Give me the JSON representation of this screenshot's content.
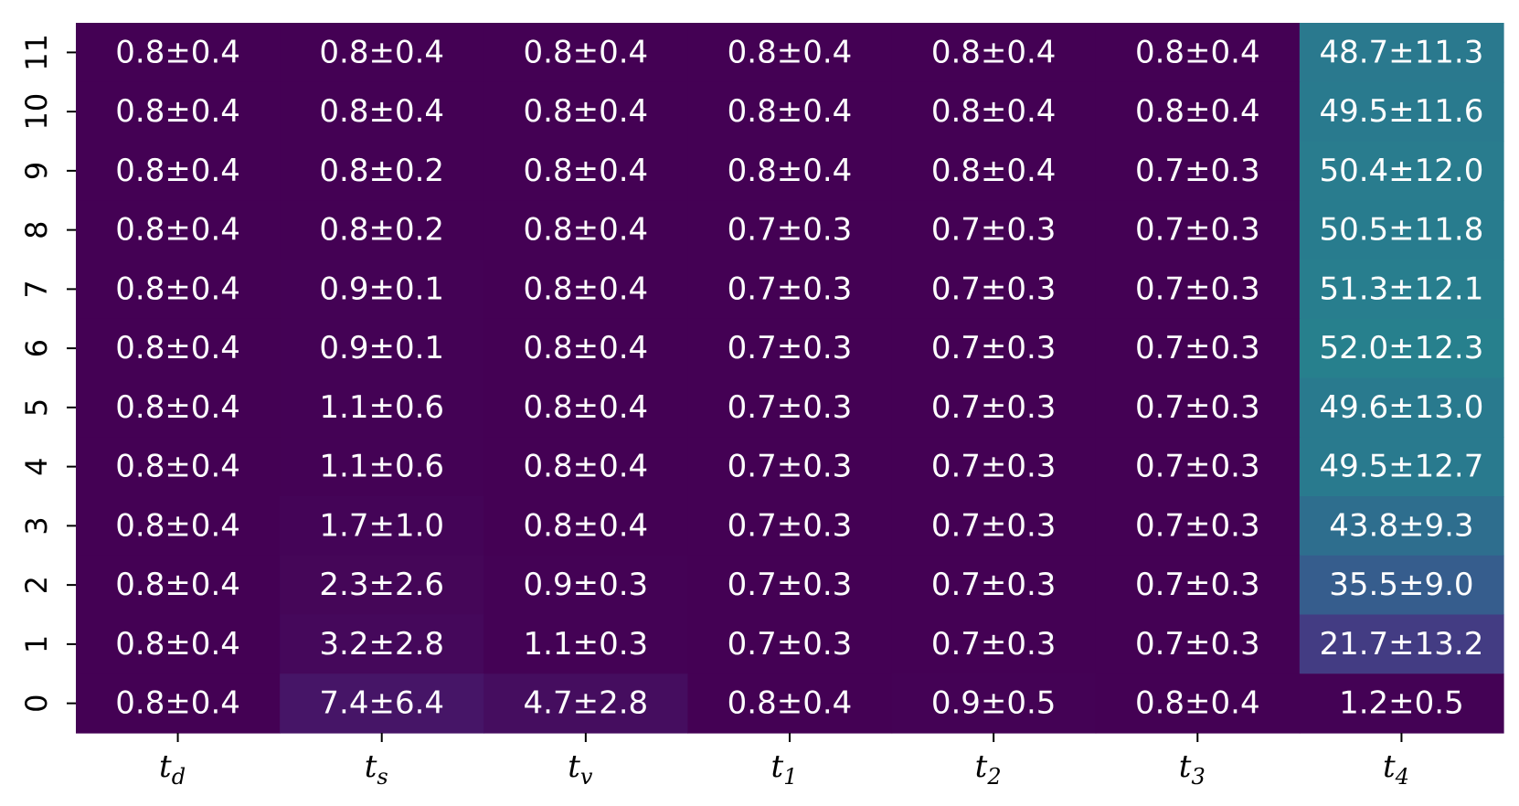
{
  "chart_data": {
    "type": "heatmap",
    "x_categories": [
      {
        "base": "t",
        "sub": "d"
      },
      {
        "base": "t",
        "sub": "s"
      },
      {
        "base": "t",
        "sub": "v"
      },
      {
        "base": "t",
        "sub": "1"
      },
      {
        "base": "t",
        "sub": "2"
      },
      {
        "base": "t",
        "sub": "3"
      },
      {
        "base": "t",
        "sub": "4"
      }
    ],
    "y_categories": [
      "11",
      "10",
      "9",
      "8",
      "7",
      "6",
      "5",
      "4",
      "3",
      "2",
      "1",
      "0"
    ],
    "colormap": "viridis",
    "colorbar": false,
    "cells": [
      [
        "0.8±0.4",
        "0.8±0.4",
        "0.8±0.4",
        "0.8±0.4",
        "0.8±0.4",
        "0.8±0.4",
        "48.7±11.3"
      ],
      [
        "0.8±0.4",
        "0.8±0.4",
        "0.8±0.4",
        "0.8±0.4",
        "0.8±0.4",
        "0.8±0.4",
        "49.5±11.6"
      ],
      [
        "0.8±0.4",
        "0.8±0.2",
        "0.8±0.4",
        "0.8±0.4",
        "0.8±0.4",
        "0.7±0.3",
        "50.4±12.0"
      ],
      [
        "0.8±0.4",
        "0.8±0.2",
        "0.8±0.4",
        "0.7±0.3",
        "0.7±0.3",
        "0.7±0.3",
        "50.5±11.8"
      ],
      [
        "0.8±0.4",
        "0.9±0.1",
        "0.8±0.4",
        "0.7±0.3",
        "0.7±0.3",
        "0.7±0.3",
        "51.3±12.1"
      ],
      [
        "0.8±0.4",
        "0.9±0.1",
        "0.8±0.4",
        "0.7±0.3",
        "0.7±0.3",
        "0.7±0.3",
        "52.0±12.3"
      ],
      [
        "0.8±0.4",
        "1.1±0.6",
        "0.8±0.4",
        "0.7±0.3",
        "0.7±0.3",
        "0.7±0.3",
        "49.6±13.0"
      ],
      [
        "0.8±0.4",
        "1.1±0.6",
        "0.8±0.4",
        "0.7±0.3",
        "0.7±0.3",
        "0.7±0.3",
        "49.5±12.7"
      ],
      [
        "0.8±0.4",
        "1.7±1.0",
        "0.8±0.4",
        "0.7±0.3",
        "0.7±0.3",
        "0.7±0.3",
        "43.8±9.3"
      ],
      [
        "0.8±0.4",
        "2.3±2.6",
        "0.9±0.3",
        "0.7±0.3",
        "0.7±0.3",
        "0.7±0.3",
        "35.5±9.0"
      ],
      [
        "0.8±0.4",
        "3.2±2.8",
        "1.1±0.3",
        "0.7±0.3",
        "0.7±0.3",
        "0.7±0.3",
        "21.7±13.2"
      ],
      [
        "0.8±0.4",
        "7.4±6.4",
        "4.7±2.8",
        "0.8±0.4",
        "0.9±0.5",
        "0.8±0.4",
        "1.2±0.5"
      ]
    ],
    "values": [
      [
        0.8,
        0.8,
        0.8,
        0.8,
        0.8,
        0.8,
        48.7
      ],
      [
        0.8,
        0.8,
        0.8,
        0.8,
        0.8,
        0.8,
        49.5
      ],
      [
        0.8,
        0.8,
        0.8,
        0.8,
        0.8,
        0.7,
        50.4
      ],
      [
        0.8,
        0.8,
        0.8,
        0.7,
        0.7,
        0.7,
        50.5
      ],
      [
        0.8,
        0.9,
        0.8,
        0.7,
        0.7,
        0.7,
        51.3
      ],
      [
        0.8,
        0.9,
        0.8,
        0.7,
        0.7,
        0.7,
        52.0
      ],
      [
        0.8,
        1.1,
        0.8,
        0.7,
        0.7,
        0.7,
        49.6
      ],
      [
        0.8,
        1.1,
        0.8,
        0.7,
        0.7,
        0.7,
        49.5
      ],
      [
        0.8,
        1.7,
        0.8,
        0.7,
        0.7,
        0.7,
        43.8
      ],
      [
        0.8,
        2.3,
        0.9,
        0.7,
        0.7,
        0.7,
        35.5
      ],
      [
        0.8,
        3.2,
        1.1,
        0.7,
        0.7,
        0.7,
        21.7
      ],
      [
        0.8,
        7.4,
        4.7,
        0.8,
        0.9,
        0.8,
        1.2
      ]
    ],
    "value_range": [
      0.7,
      120
    ],
    "text_color": "#ffffff",
    "tick_color": "#000000"
  }
}
